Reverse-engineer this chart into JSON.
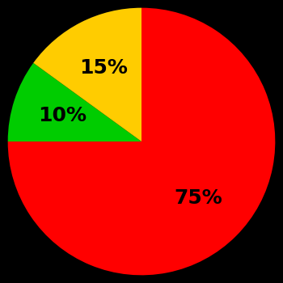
{
  "slices": [
    75,
    10,
    15
  ],
  "colors": [
    "#ff0000",
    "#00cc00",
    "#ffcc00"
  ],
  "labels": [
    "75%",
    "10%",
    "15%"
  ],
  "background_color": "#000000",
  "label_fontsize": 18,
  "label_color": "#000000",
  "startangle": 90,
  "label_distances": [
    0.6,
    0.62,
    0.62
  ]
}
